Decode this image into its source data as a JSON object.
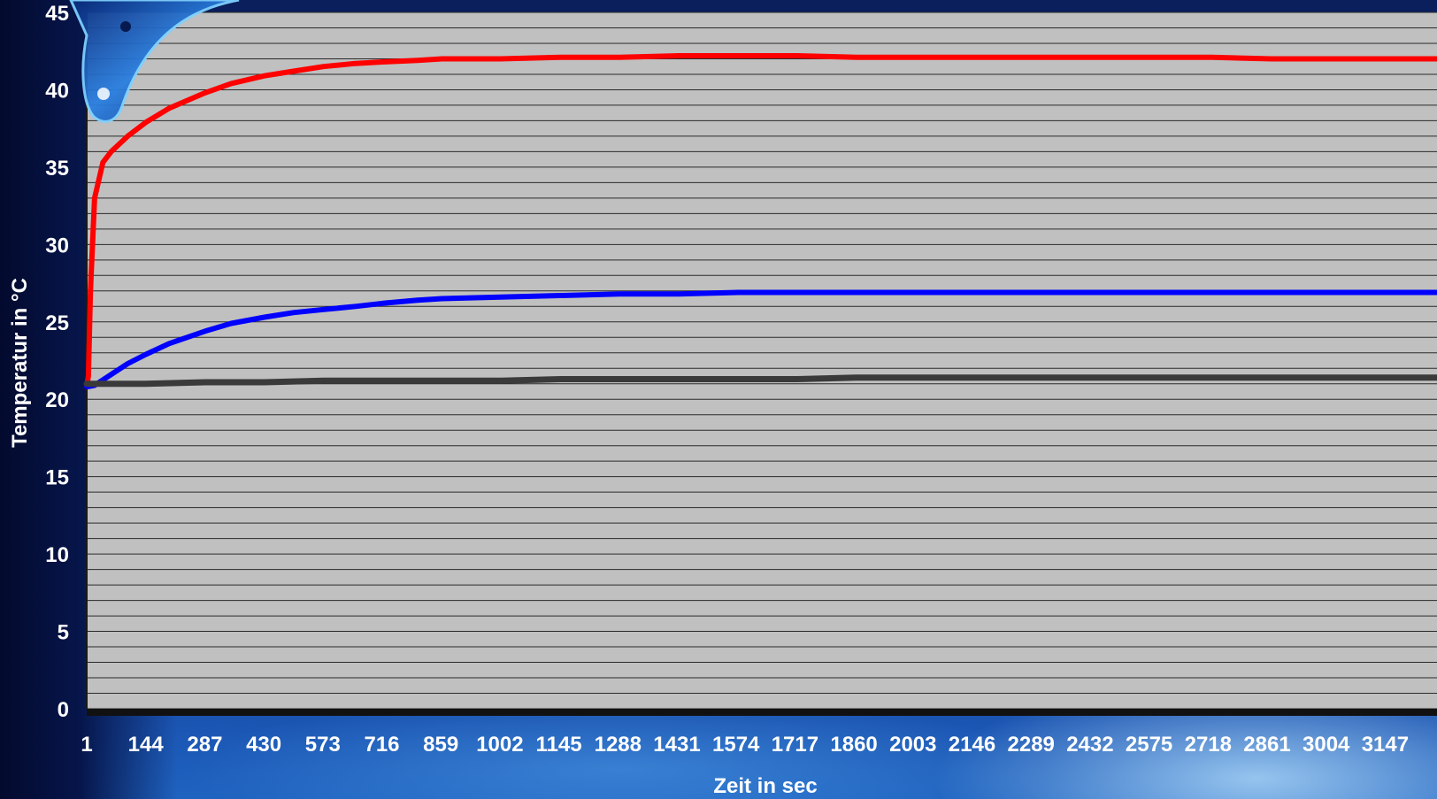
{
  "chart_data": {
    "type": "line",
    "title": "",
    "xlabel": "Zeit in sec",
    "ylabel": "Temperatur in °C",
    "ylim": [
      0,
      45
    ],
    "y_ticks": [
      0,
      5,
      10,
      15,
      20,
      25,
      30,
      35,
      40,
      45
    ],
    "x_tick_labels": [
      "1",
      "144",
      "287",
      "430",
      "573",
      "716",
      "859",
      "1002",
      "1145",
      "1288",
      "1431",
      "1574",
      "1717",
      "1860",
      "2003",
      "2146",
      "2289",
      "2432",
      "2575",
      "2718",
      "2861",
      "3004",
      "3147"
    ],
    "xlim": [
      1,
      3262
    ],
    "grid": true,
    "legend": "none",
    "series": [
      {
        "color": "#ff0000",
        "x": [
          1,
          5,
          10,
          20,
          40,
          60,
          100,
          144,
          200,
          287,
          350,
          430,
          500,
          573,
          650,
          716,
          800,
          859,
          1000,
          1145,
          1288,
          1431,
          1574,
          1717,
          1860,
          2003,
          2146,
          2289,
          2432,
          2575,
          2718,
          2861,
          3004,
          3147,
          3262
        ],
        "values": [
          20.8,
          21.5,
          27,
          33,
          35.3,
          36,
          37,
          37.9,
          38.8,
          39.8,
          40.4,
          40.9,
          41.2,
          41.5,
          41.7,
          41.8,
          41.9,
          42.0,
          42.0,
          42.1,
          42.1,
          42.2,
          42.2,
          42.2,
          42.1,
          42.1,
          42.1,
          42.1,
          42.1,
          42.1,
          42.1,
          42.0,
          42.0,
          42.0,
          42.0
        ]
      },
      {
        "color": "#0000ff",
        "x": [
          1,
          20,
          60,
          100,
          144,
          200,
          287,
          350,
          430,
          500,
          573,
          650,
          716,
          800,
          859,
          1000,
          1145,
          1288,
          1431,
          1574,
          1717,
          1860,
          2003,
          2146,
          2289,
          2432,
          2575,
          2718,
          2861,
          3004,
          3147,
          3262
        ],
        "values": [
          20.8,
          20.9,
          21.6,
          22.3,
          22.9,
          23.6,
          24.4,
          24.9,
          25.3,
          25.6,
          25.8,
          26.0,
          26.2,
          26.4,
          26.5,
          26.6,
          26.7,
          26.8,
          26.8,
          26.9,
          26.9,
          26.9,
          26.9,
          26.9,
          26.9,
          26.9,
          26.9,
          26.9,
          26.9,
          26.9,
          26.9,
          26.9
        ]
      },
      {
        "color": "#3a3a3a",
        "x": [
          1,
          144,
          287,
          430,
          573,
          716,
          859,
          1002,
          1145,
          1288,
          1431,
          1574,
          1717,
          1860,
          2003,
          2146,
          2289,
          2432,
          2575,
          2718,
          2861,
          3004,
          3147,
          3262
        ],
        "values": [
          21.0,
          21.0,
          21.1,
          21.1,
          21.2,
          21.2,
          21.2,
          21.2,
          21.3,
          21.3,
          21.3,
          21.3,
          21.3,
          21.4,
          21.4,
          21.4,
          21.4,
          21.4,
          21.4,
          21.4,
          21.4,
          21.4,
          21.4,
          21.4
        ]
      }
    ]
  }
}
